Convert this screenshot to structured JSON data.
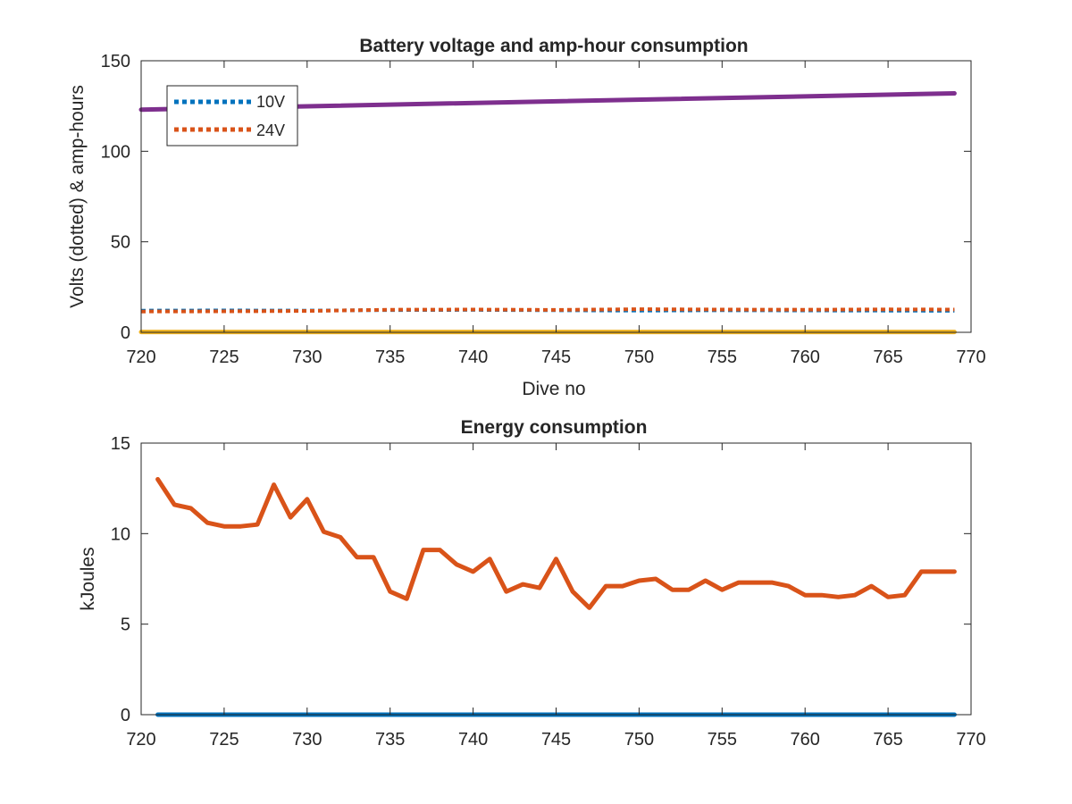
{
  "colors": {
    "10V": "#0072BD",
    "24V": "#D95319",
    "amp_hours_total": "#7E2F8E",
    "amp_hours_low": "#EDB120",
    "energy": "#D95319",
    "energy_zero": "#0072BD",
    "axes": "#262626"
  },
  "chart_data": [
    {
      "type": "line",
      "title": "Battery voltage and amp-hour consumption",
      "xlabel": "Dive no",
      "ylabel": "Volts (dotted) & amp-hours",
      "xlim": [
        720,
        770
      ],
      "ylim": [
        0,
        150
      ],
      "xticks": [
        720,
        725,
        730,
        735,
        740,
        745,
        750,
        755,
        760,
        765,
        770
      ],
      "yticks": [
        0,
        50,
        100,
        150
      ],
      "grid": false,
      "box": true,
      "legend": {
        "position": "top-left",
        "entries": [
          "10V",
          "24V"
        ]
      },
      "series": [
        {
          "name": "10V",
          "style": "dotted",
          "color_key": "10V",
          "x": [
            720,
            725,
            730,
            735,
            740,
            745,
            750,
            755,
            760,
            765,
            769
          ],
          "y": [
            12.0,
            12.1,
            12.0,
            12.3,
            12.4,
            12.2,
            12.0,
            12.2,
            12.1,
            12.0,
            11.9
          ]
        },
        {
          "name": "24V",
          "style": "dotted",
          "color_key": "24V",
          "x": [
            720,
            725,
            730,
            735,
            740,
            745,
            750,
            755,
            760,
            765,
            769
          ],
          "y": [
            11.5,
            11.6,
            11.8,
            12.5,
            12.6,
            12.4,
            12.8,
            12.6,
            12.5,
            12.7,
            12.6
          ]
        },
        {
          "style": "solid",
          "color_key": "amp_hours_total",
          "x": [
            720,
            769
          ],
          "y": [
            123,
            132
          ]
        },
        {
          "style": "solid",
          "color_key": "amp_hours_low",
          "x": [
            720,
            769
          ],
          "y": [
            0.2,
            0.2
          ]
        }
      ]
    },
    {
      "type": "line",
      "title": "Energy consumption",
      "xlabel": "",
      "ylabel": "kJoules",
      "xlim": [
        720,
        770
      ],
      "ylim": [
        0,
        15
      ],
      "xticks": [
        720,
        725,
        730,
        735,
        740,
        745,
        750,
        755,
        760,
        765,
        770
      ],
      "yticks": [
        0,
        5,
        10,
        15
      ],
      "grid": false,
      "box": true,
      "series": [
        {
          "style": "solid",
          "color_key": "energy",
          "x": [
            721,
            722,
            723,
            724,
            725,
            726,
            727,
            728,
            729,
            730,
            731,
            732,
            733,
            734,
            735,
            736,
            737,
            738,
            739,
            740,
            741,
            742,
            743,
            744,
            745,
            746,
            747,
            748,
            749,
            750,
            751,
            752,
            753,
            754,
            755,
            756,
            757,
            758,
            759,
            760,
            761,
            762,
            763,
            764,
            765,
            766,
            767,
            768,
            769
          ],
          "y": [
            13.0,
            11.6,
            11.4,
            10.6,
            10.4,
            10.4,
            10.5,
            12.7,
            10.9,
            11.9,
            10.1,
            9.8,
            8.7,
            8.7,
            6.8,
            6.4,
            9.1,
            9.1,
            8.3,
            7.9,
            8.6,
            6.8,
            7.2,
            7.0,
            8.6,
            6.8,
            5.9,
            7.1,
            7.1,
            7.4,
            7.5,
            6.9,
            6.9,
            7.4,
            6.9,
            7.3,
            7.3,
            7.3,
            7.1,
            6.6,
            6.6,
            6.5,
            6.6,
            7.1,
            6.5,
            6.6,
            7.9,
            7.9,
            7.9
          ]
        },
        {
          "style": "solid",
          "color_key": "energy_zero",
          "x": [
            721,
            769
          ],
          "y": [
            0,
            0
          ]
        }
      ]
    }
  ]
}
